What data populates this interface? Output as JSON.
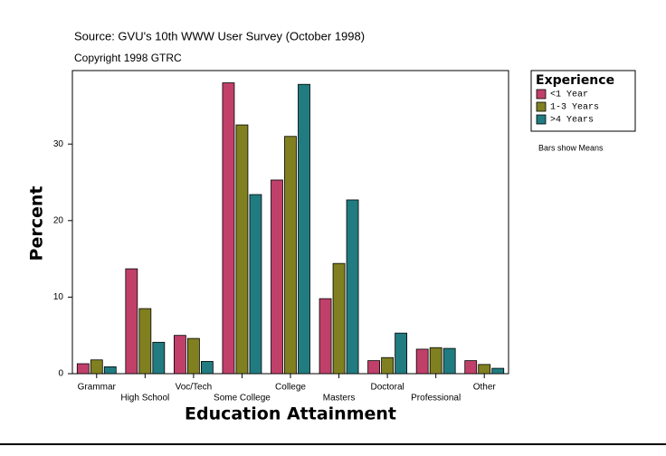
{
  "chart_data": {
    "type": "bar",
    "title": "Source: GVU's 10th WWW User Survey (October 1998)",
    "subtitle": "Copyright 1998 GTRC",
    "x_label": "Education Attainment",
    "y_label": "Percent",
    "legend_title": "Experience",
    "note": "Bars show Means",
    "legend_position": "right",
    "categories": [
      "Grammar",
      "High School",
      "Voc/Tech",
      "Some College",
      "College",
      "Masters",
      "Doctoral",
      "Professional",
      "Other"
    ],
    "series": [
      {
        "name": "<1 Year",
        "color": "#c0406a",
        "values": [
          1.3,
          13.7,
          5.0,
          38.0,
          25.3,
          9.8,
          1.7,
          3.2,
          1.7
        ]
      },
      {
        "name": "1-3 Years",
        "color": "#808020",
        "values": [
          1.8,
          8.5,
          4.6,
          32.5,
          31.0,
          14.4,
          2.1,
          3.4,
          1.2
        ]
      },
      {
        "name": ">4 Years",
        "color": "#207c80",
        "values": [
          0.9,
          4.1,
          1.6,
          23.4,
          37.8,
          22.7,
          5.3,
          3.3,
          0.7
        ]
      }
    ],
    "ylim": [
      0,
      39.6
    ],
    "yticks": [
      0,
      10,
      20,
      30
    ],
    "grid": false
  }
}
